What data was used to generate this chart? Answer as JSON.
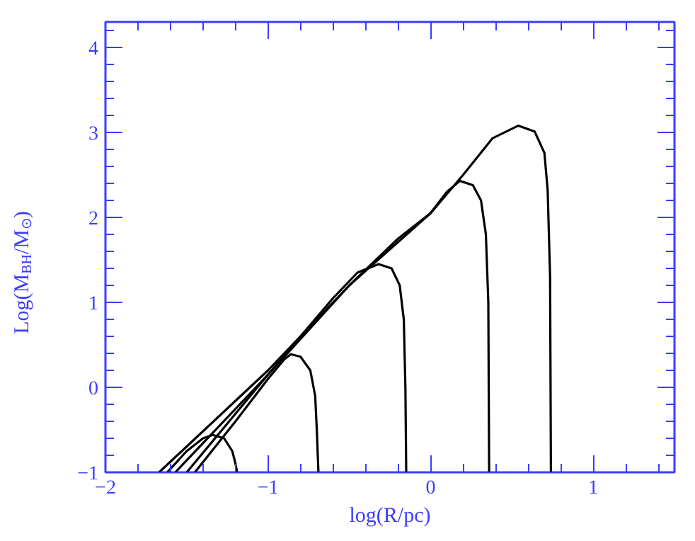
{
  "chart_data": {
    "type": "line",
    "xlabel": "log(R/pc)",
    "ylabel": "Log(M$_{BH}$/M$_{⊙}$)",
    "xlim": [
      -2,
      1.5
    ],
    "ylim": [
      -1,
      4.3
    ],
    "xticks": [
      -2,
      {
        "value": -1.8,
        "label": null
      },
      {
        "value": -1.6,
        "label": null
      },
      {
        "value": -1.4,
        "label": null
      },
      {
        "value": -1.2,
        "label": null
      },
      -1,
      {
        "value": -0.8,
        "label": null
      },
      {
        "value": -0.6,
        "label": null
      },
      {
        "value": -0.4,
        "label": null
      },
      {
        "value": -0.2,
        "label": null
      },
      0,
      {
        "value": 0.2,
        "label": null
      },
      {
        "value": 0.4,
        "label": null
      },
      {
        "value": 0.6,
        "label": null
      },
      {
        "value": 0.8,
        "label": null
      },
      1,
      {
        "value": 1.2,
        "label": null
      },
      {
        "value": 1.4,
        "label": null
      }
    ],
    "yticks": [
      -1,
      {
        "value": -0.8,
        "label": null
      },
      {
        "value": -0.6,
        "label": null
      },
      {
        "value": -0.4,
        "label": null
      },
      {
        "value": -0.2,
        "label": null
      },
      0,
      {
        "value": 0.2,
        "label": null
      },
      {
        "value": 0.4,
        "label": null
      },
      {
        "value": 0.6,
        "label": null
      },
      {
        "value": 0.8,
        "label": null
      },
      1,
      {
        "value": 1.2,
        "label": null
      },
      {
        "value": 1.4,
        "label": null
      },
      {
        "value": 1.6,
        "label": null
      },
      {
        "value": 1.8,
        "label": null
      },
      2,
      {
        "value": 2.2,
        "label": null
      },
      {
        "value": 2.4,
        "label": null
      },
      {
        "value": 2.6,
        "label": null
      },
      {
        "value": 2.8,
        "label": null
      },
      3,
      {
        "value": 3.2,
        "label": null
      },
      {
        "value": 3.4,
        "label": null
      },
      {
        "value": 3.6,
        "label": null
      },
      {
        "value": 3.8,
        "label": null
      },
      4,
      {
        "value": 4.2,
        "label": null
      }
    ],
    "grid": false,
    "marker": "none",
    "line_style": "solid",
    "series": [
      {
        "color": "#000000",
        "x": [
          -1.67,
          -1.0,
          -0.5,
          0,
          0.2,
          0.38,
          0.54,
          0.64,
          0.7,
          0.72,
          0.735,
          0.74
        ],
        "values": [
          -1,
          0.2,
          1.2,
          2.05,
          2.5,
          2.93,
          3.08,
          3.01,
          2.76,
          2.32,
          1.3,
          -1
        ]
      },
      {
        "color": "#000000",
        "x": [
          -1.57,
          -1.0,
          -0.5,
          -0.2,
          0,
          0.1,
          0.18,
          0.26,
          0.31,
          0.34,
          0.355,
          0.36
        ],
        "values": [
          -1,
          0.15,
          1.2,
          1.75,
          2.05,
          2.3,
          2.43,
          2.38,
          2.2,
          1.8,
          1.0,
          -1
        ]
      },
      {
        "color": "#000000",
        "x": [
          -1.5,
          -1.0,
          -0.6,
          -0.45,
          -0.32,
          -0.24,
          -0.19,
          -0.165,
          -0.155,
          -0.15
        ],
        "values": [
          -1,
          0.15,
          1.05,
          1.35,
          1.45,
          1.4,
          1.2,
          0.8,
          0,
          -1
        ]
      },
      {
        "color": "#000000",
        "x": [
          -1.45,
          -1.2,
          -1.0,
          -0.9,
          -0.86,
          -0.8,
          -0.74,
          -0.71,
          -0.7,
          -0.69
        ],
        "values": [
          -1,
          -0.4,
          0.1,
          0.33,
          0.39,
          0.36,
          0.2,
          -0.1,
          -0.5,
          -1
        ]
      },
      {
        "color": "#000000",
        "x": [
          -1.62,
          -1.5,
          -1.4,
          -1.34,
          -1.27,
          -1.22,
          -1.2,
          -1.19
        ],
        "values": [
          -1,
          -0.75,
          -0.6,
          -0.56,
          -0.6,
          -0.75,
          -0.9,
          -1
        ]
      }
    ]
  }
}
